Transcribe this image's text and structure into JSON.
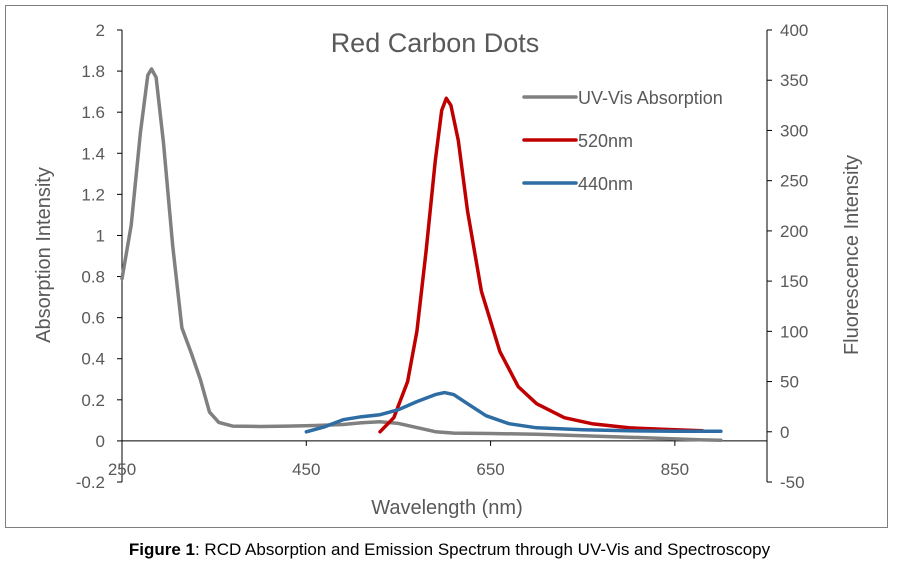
{
  "chart_data": {
    "type": "line",
    "title": "Red Carbon Dots",
    "xlabel": "Wavelength (nm)",
    "ylabel": "Absorption Intensity",
    "y2label": "Fluorescence Intensity",
    "xlim": [
      250,
      950
    ],
    "ylim": [
      -0.2,
      2
    ],
    "y2lim": [
      -50,
      400
    ],
    "x_ticks": [
      "250",
      "450",
      "650",
      "850"
    ],
    "y_ticks": [
      "-0.2",
      "0",
      "0.2",
      "0.4",
      "0.6",
      "0.8",
      "1",
      "1.2",
      "1.4",
      "1.6",
      "1.8",
      "2"
    ],
    "y2_ticks": [
      "-50",
      "0",
      "50",
      "100",
      "150",
      "200",
      "250",
      "300",
      "350",
      "400"
    ],
    "legend_position": "top-right",
    "series": [
      {
        "name": "UV-Vis Absorption",
        "axis": "left",
        "color": "#808080",
        "points": [
          [
            250,
            0.79
          ],
          [
            260,
            1.05
          ],
          [
            270,
            1.5
          ],
          [
            278,
            1.78
          ],
          [
            282,
            1.81
          ],
          [
            287,
            1.77
          ],
          [
            295,
            1.45
          ],
          [
            305,
            0.95
          ],
          [
            315,
            0.55
          ],
          [
            325,
            0.43
          ],
          [
            335,
            0.3
          ],
          [
            345,
            0.14
          ],
          [
            355,
            0.09
          ],
          [
            370,
            0.072
          ],
          [
            400,
            0.07
          ],
          [
            430,
            0.072
          ],
          [
            460,
            0.075
          ],
          [
            490,
            0.08
          ],
          [
            510,
            0.088
          ],
          [
            530,
            0.093
          ],
          [
            550,
            0.085
          ],
          [
            570,
            0.065
          ],
          [
            590,
            0.045
          ],
          [
            610,
            0.038
          ],
          [
            650,
            0.036
          ],
          [
            700,
            0.032
          ],
          [
            750,
            0.025
          ],
          [
            800,
            0.018
          ],
          [
            850,
            0.01
          ],
          [
            880,
            0.005
          ],
          [
            900,
            0.003
          ]
        ]
      },
      {
        "name": "520nm",
        "axis": "right",
        "color": "#c00000",
        "points": [
          [
            530,
            0
          ],
          [
            545,
            14
          ],
          [
            560,
            50
          ],
          [
            570,
            100
          ],
          [
            580,
            180
          ],
          [
            590,
            270
          ],
          [
            597,
            320
          ],
          [
            602,
            332
          ],
          [
            607,
            325
          ],
          [
            615,
            290
          ],
          [
            625,
            220
          ],
          [
            640,
            140
          ],
          [
            660,
            80
          ],
          [
            680,
            45
          ],
          [
            700,
            28
          ],
          [
            730,
            14
          ],
          [
            760,
            8
          ],
          [
            800,
            4
          ],
          [
            850,
            2
          ],
          [
            880,
            1
          ]
        ]
      },
      {
        "name": "440nm",
        "axis": "right",
        "color": "#2e6ca4",
        "points": [
          [
            450,
            0
          ],
          [
            470,
            5
          ],
          [
            490,
            12
          ],
          [
            510,
            15
          ],
          [
            530,
            17
          ],
          [
            550,
            22
          ],
          [
            570,
            30
          ],
          [
            590,
            37
          ],
          [
            600,
            39
          ],
          [
            610,
            37
          ],
          [
            625,
            28
          ],
          [
            645,
            16
          ],
          [
            670,
            8
          ],
          [
            700,
            4
          ],
          [
            750,
            2
          ],
          [
            800,
            1
          ],
          [
            850,
            0.5
          ],
          [
            900,
            0.5
          ]
        ]
      }
    ]
  },
  "caption": {
    "label": "Figure 1",
    "text": ": RCD Absorption and Emission Spectrum through UV-Vis and Spectroscopy"
  }
}
